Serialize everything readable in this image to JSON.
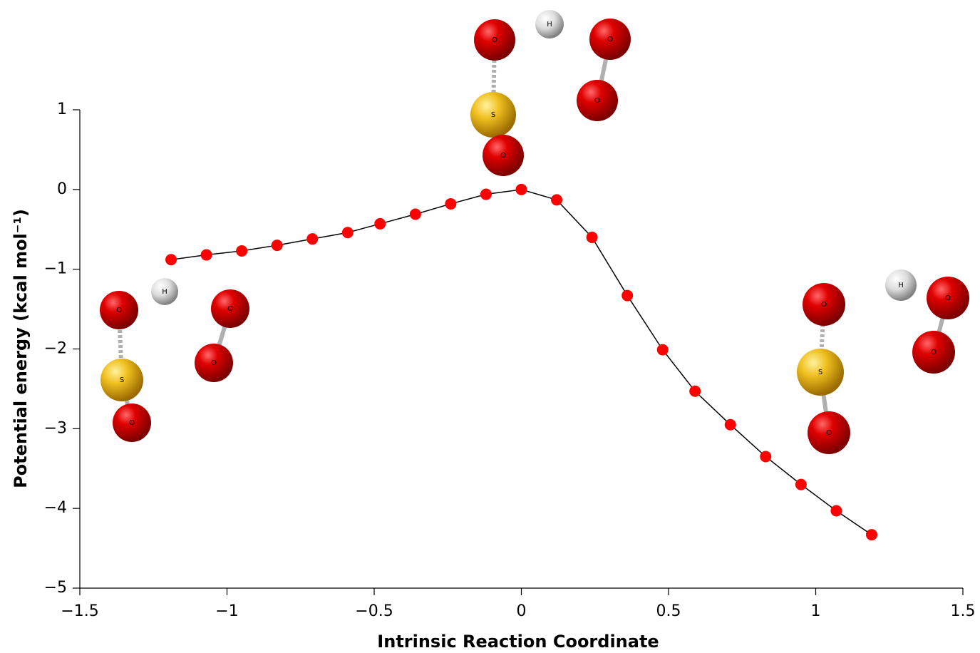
{
  "chart_data": {
    "type": "line",
    "xlabel": "Intrinsic Reaction Coordinate",
    "ylabel": "Potential energy (kcal mol⁻¹)",
    "x": [
      -1.19,
      -1.07,
      -0.95,
      -0.83,
      -0.71,
      -0.59,
      -0.48,
      -0.36,
      -0.24,
      -0.12,
      0,
      0.12,
      0.24,
      0.36,
      0.48,
      0.59,
      0.71,
      0.83,
      0.95,
      1.07,
      1.19
    ],
    "series": [
      {
        "color": "#ff0000",
        "line_color": "#000000",
        "values": [
          -0.88,
          -0.82,
          -0.77,
          -0.7,
          -0.62,
          -0.54,
          -0.43,
          -0.31,
          -0.18,
          -0.06,
          0,
          -0.13,
          -0.6,
          -1.33,
          -2.01,
          -2.53,
          -2.95,
          -3.35,
          -3.7,
          -4.03,
          -4.33
        ]
      }
    ],
    "xlim": [
      -1.5,
      1.5
    ],
    "xticks": [
      {
        "value": -1.5,
        "label": "−1.5"
      },
      {
        "value": -1,
        "label": "−1"
      },
      {
        "value": -0.5,
        "label": "−0.5"
      },
      0,
      0.5,
      1,
      1.5
    ],
    "ylim": [
      -5,
      1
    ],
    "yticks": [
      {
        "value": -5,
        "label": "−5"
      },
      {
        "value": -4,
        "label": "−4"
      },
      {
        "value": -3,
        "label": "−3"
      },
      {
        "value": -2,
        "label": "−2"
      },
      {
        "value": -1,
        "label": "−1"
      },
      0,
      1
    ],
    "molecules": [
      {
        "atoms": [
          "O",
          "H",
          "O",
          "S",
          "O",
          "O"
        ]
      },
      {
        "atoms": [
          "O",
          "H",
          "O",
          "S",
          "O",
          "O"
        ]
      },
      {
        "atoms": [
          "O",
          "H",
          "O",
          "S",
          "O",
          "O"
        ]
      }
    ]
  }
}
